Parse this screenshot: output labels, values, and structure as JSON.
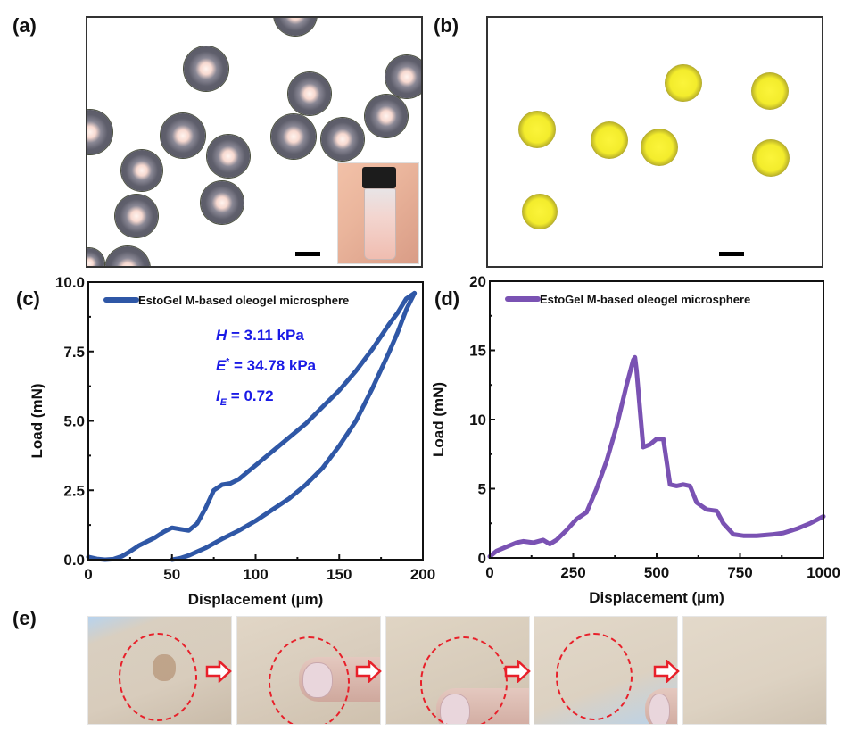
{
  "panels": {
    "a": {
      "label": "(a)",
      "description": "optical micrograph of oleogel microspheres with inset vial photo"
    },
    "b": {
      "label": "(b)",
      "description": "micrograph of yellow-core microspheres"
    },
    "c": {
      "label": "(c)"
    },
    "d": {
      "label": "(d)"
    },
    "e": {
      "label": "(e)",
      "description": "application sequence of microspheres on skin",
      "frames": 5,
      "arrows": 4
    }
  },
  "colors": {
    "series_c": "#2f57a6",
    "series_d": "#7a52b3",
    "annotation": "#1a1ae6",
    "dashed_circle": "#e8202a",
    "arrow": "#e8202a"
  },
  "chart_data": [
    {
      "type": "line",
      "panel": "c",
      "title": "",
      "xlabel": "Displacement (µm)",
      "ylabel": "Load (mN)",
      "xlim": [
        0,
        200
      ],
      "ylim": [
        0,
        10
      ],
      "xticks": [
        "0",
        "50",
        "100",
        "150",
        "200"
      ],
      "yticks": [
        "0.0",
        "2.5",
        "5.0",
        "7.5",
        "10.0"
      ],
      "legend": {
        "position": "top-left",
        "entries": [
          "EstoGel M-based oleogel microsphere"
        ]
      },
      "annotations": [
        {
          "symbol": "H",
          "sup": "",
          "sub": "",
          "text": " =  3.11 kPa"
        },
        {
          "symbol": "E",
          "sup": "*",
          "sub": "",
          "text": " = 34.78 kPa"
        },
        {
          "symbol": "I",
          "sup": "",
          "sub": "E",
          "text": "  = 0.72"
        }
      ],
      "series": [
        {
          "name": "EstoGel M-based oleogel microsphere (loading)",
          "x": [
            0,
            5,
            10,
            15,
            20,
            25,
            30,
            35,
            40,
            45,
            50,
            55,
            60,
            65,
            70,
            75,
            80,
            85,
            90,
            95,
            100,
            110,
            120,
            130,
            140,
            150,
            160,
            170,
            180,
            185,
            190,
            195
          ],
          "y": [
            0.1,
            0.03,
            0.0,
            0.02,
            0.12,
            0.3,
            0.5,
            0.65,
            0.8,
            1.0,
            1.15,
            1.1,
            1.05,
            1.3,
            1.85,
            2.5,
            2.7,
            2.75,
            2.9,
            3.15,
            3.4,
            3.9,
            4.4,
            4.9,
            5.5,
            6.1,
            6.8,
            7.6,
            8.5,
            8.9,
            9.4,
            9.6
          ]
        },
        {
          "name": "EstoGel M-based oleogel microsphere (unloading)",
          "x": [
            195,
            190,
            185,
            180,
            170,
            160,
            150,
            140,
            130,
            120,
            110,
            100,
            90,
            80,
            70,
            60,
            55,
            50
          ],
          "y": [
            9.6,
            9.0,
            8.2,
            7.5,
            6.2,
            5.0,
            4.1,
            3.3,
            2.7,
            2.2,
            1.8,
            1.4,
            1.05,
            0.75,
            0.42,
            0.15,
            0.05,
            0.0
          ]
        }
      ]
    },
    {
      "type": "line",
      "panel": "d",
      "title": "",
      "xlabel": "Displacement (µm)",
      "ylabel": "Load (mN)",
      "xlim": [
        0,
        1000
      ],
      "ylim": [
        0,
        20
      ],
      "xticks": [
        "0",
        "250",
        "500",
        "750",
        "1000"
      ],
      "yticks": [
        "0",
        "5",
        "10",
        "15",
        "20"
      ],
      "legend": {
        "position": "top-left",
        "entries": [
          "EstoGel M-based oleogel microsphere"
        ]
      },
      "series": [
        {
          "name": "EstoGel M-based oleogel microsphere",
          "x": [
            0,
            20,
            50,
            80,
            100,
            130,
            160,
            180,
            200,
            230,
            260,
            290,
            320,
            350,
            380,
            410,
            430,
            435,
            440,
            460,
            480,
            500,
            520,
            540,
            560,
            580,
            600,
            620,
            650,
            680,
            700,
            730,
            760,
            800,
            850,
            880,
            920,
            960,
            1000
          ],
          "y": [
            0.1,
            0.5,
            0.8,
            1.1,
            1.2,
            1.1,
            1.3,
            1.0,
            1.3,
            2.0,
            2.8,
            3.3,
            5.0,
            7.0,
            9.5,
            12.5,
            14.3,
            14.5,
            13.5,
            8.0,
            8.2,
            8.6,
            8.6,
            5.3,
            5.2,
            5.3,
            5.2,
            4.0,
            3.5,
            3.4,
            2.5,
            1.7,
            1.6,
            1.6,
            1.7,
            1.8,
            2.1,
            2.5,
            3.0
          ]
        }
      ]
    }
  ]
}
